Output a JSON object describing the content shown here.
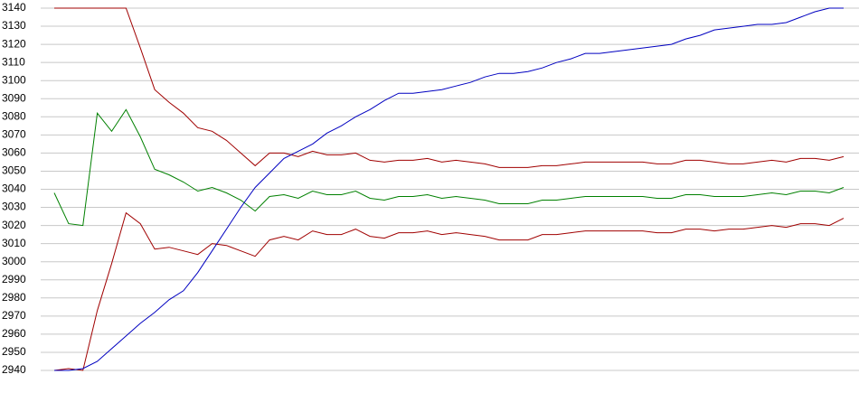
{
  "chart_data": {
    "type": "line",
    "ylim": [
      2940,
      3140
    ],
    "yticks": [
      2940,
      2950,
      2960,
      2970,
      2980,
      2990,
      3000,
      3010,
      3020,
      3030,
      3040,
      3050,
      3060,
      3070,
      3080,
      3090,
      3100,
      3110,
      3120,
      3130,
      3140
    ],
    "grid": true,
    "series": [
      {
        "color": "#a00000",
        "values": [
          3140,
          3140,
          3140,
          3140,
          3140,
          3140,
          3118,
          3095,
          3088,
          3082,
          3074,
          3072,
          3067,
          3060,
          3053,
          3060,
          3060,
          3058,
          3061,
          3059,
          3059,
          3060,
          3056,
          3055,
          3056,
          3056,
          3057,
          3055,
          3056,
          3055,
          3054,
          3052,
          3052,
          3052,
          3053,
          3053,
          3054,
          3055,
          3055,
          3055,
          3055,
          3055,
          3054,
          3054,
          3056,
          3056,
          3055,
          3054,
          3054,
          3055,
          3056,
          3055,
          3057,
          3057,
          3056,
          3058
        ]
      },
      {
        "color": "#008000",
        "values": [
          3038,
          3021,
          3020,
          3082,
          3072,
          3084,
          3069,
          3051,
          3048,
          3044,
          3039,
          3041,
          3038,
          3034,
          3028,
          3036,
          3037,
          3035,
          3039,
          3037,
          3037,
          3039,
          3035,
          3034,
          3036,
          3036,
          3037,
          3035,
          3036,
          3035,
          3034,
          3032,
          3032,
          3032,
          3034,
          3034,
          3035,
          3036,
          3036,
          3036,
          3036,
          3036,
          3035,
          3035,
          3037,
          3037,
          3036,
          3036,
          3036,
          3037,
          3038,
          3037,
          3039,
          3039,
          3038,
          3041
        ]
      },
      {
        "color": "#a00000",
        "values": [
          2940,
          2941,
          2940,
          2973,
          2999,
          3027,
          3021,
          3007,
          3008,
          3006,
          3004,
          3010,
          3009,
          3006,
          3003,
          3012,
          3014,
          3012,
          3017,
          3015,
          3015,
          3018,
          3014,
          3013,
          3016,
          3016,
          3017,
          3015,
          3016,
          3015,
          3014,
          3012,
          3012,
          3012,
          3015,
          3015,
          3016,
          3017,
          3017,
          3017,
          3017,
          3017,
          3016,
          3016,
          3018,
          3018,
          3017,
          3018,
          3018,
          3019,
          3020,
          3019,
          3021,
          3021,
          3020,
          3024
        ]
      },
      {
        "color": "#0000c0",
        "values": [
          2940,
          2940,
          2941,
          2945,
          2952,
          2959,
          2966,
          2972,
          2979,
          2984,
          2994,
          3006,
          3018,
          3030,
          3041,
          3049,
          3057,
          3061,
          3065,
          3071,
          3075,
          3080,
          3084,
          3089,
          3093,
          3093,
          3094,
          3095,
          3097,
          3099,
          3102,
          3104,
          3104,
          3105,
          3107,
          3110,
          3112,
          3115,
          3115,
          3116,
          3117,
          3118,
          3119,
          3120,
          3123,
          3125,
          3128,
          3129,
          3130,
          3131,
          3131,
          3132,
          3135,
          3138,
          3140,
          3140
        ]
      }
    ]
  }
}
